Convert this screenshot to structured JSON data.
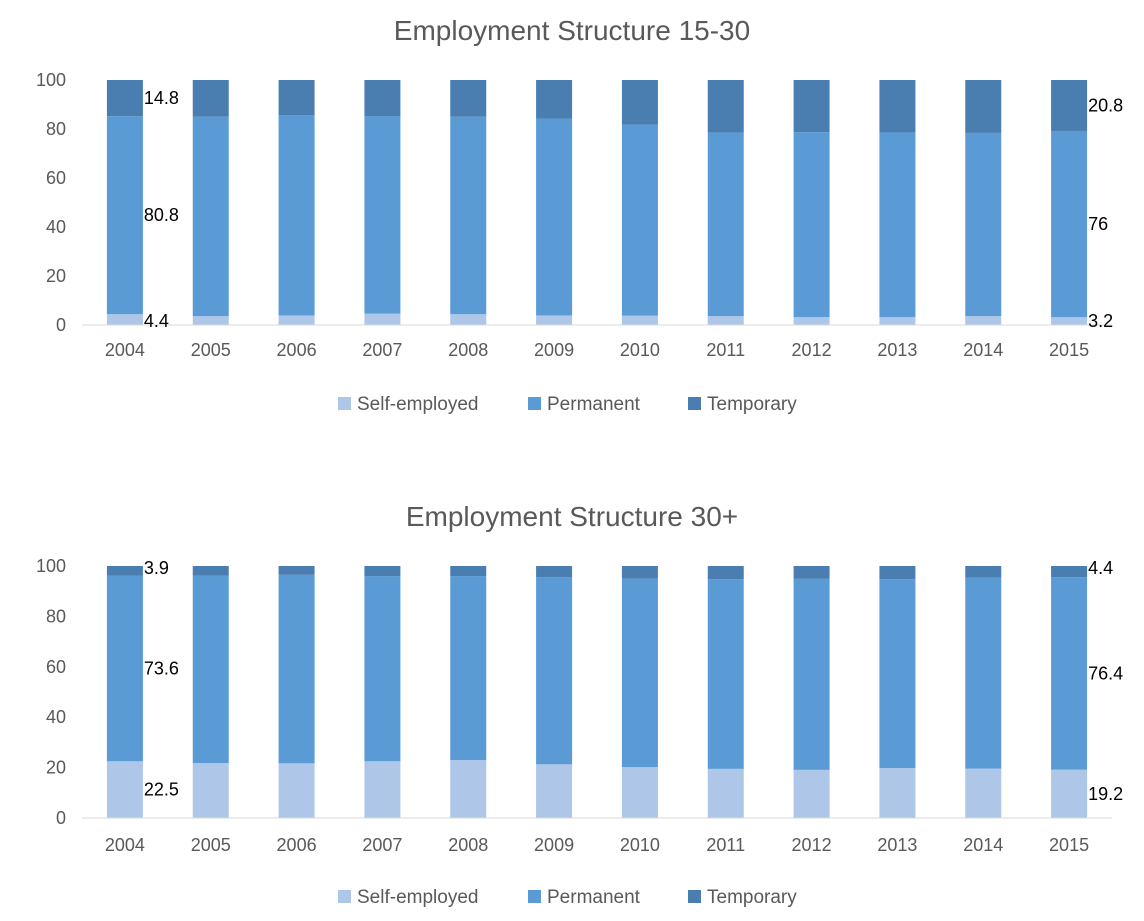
{
  "colors": {
    "self_employed": "#AEC6E8",
    "permanent": "#5B9BD5",
    "temporary": "#4A7EB0",
    "axis": "#D9D9D9",
    "text": "#595959"
  },
  "legend": [
    "Self-employed",
    "Permanent",
    "Temporary"
  ],
  "chart_data": [
    {
      "type": "bar",
      "stacked": true,
      "title": "Employment Structure 15-30",
      "categories": [
        "2004",
        "2005",
        "2006",
        "2007",
        "2008",
        "2009",
        "2010",
        "2011",
        "2012",
        "2013",
        "2014",
        "2015"
      ],
      "ylim": [
        0,
        100
      ],
      "yticks": [
        0,
        20,
        40,
        60,
        80,
        100
      ],
      "grid": false,
      "legend_position": "bottom",
      "series": [
        {
          "name": "Self-employed",
          "values": [
            4.4,
            3.6,
            3.9,
            4.6,
            4.4,
            3.9,
            3.8,
            3.6,
            3.2,
            3.2,
            3.6,
            3.2
          ]
        },
        {
          "name": "Permanent",
          "values": [
            80.8,
            81.4,
            81.8,
            80.7,
            80.6,
            80.4,
            78.0,
            75.0,
            75.5,
            75.4,
            74.8,
            76.0
          ]
        },
        {
          "name": "Temporary",
          "values": [
            14.8,
            15.0,
            14.3,
            14.7,
            15.0,
            15.7,
            18.2,
            21.4,
            21.3,
            21.4,
            21.6,
            20.8
          ]
        }
      ],
      "data_labels": [
        {
          "category": "2004",
          "series": "Self-employed",
          "text": "4.4"
        },
        {
          "category": "2004",
          "series": "Permanent",
          "text": "80.8"
        },
        {
          "category": "2004",
          "series": "Temporary",
          "text": "14.8"
        },
        {
          "category": "2015",
          "series": "Self-employed",
          "text": "3.2"
        },
        {
          "category": "2015",
          "series": "Permanent",
          "text": "76"
        },
        {
          "category": "2015",
          "series": "Temporary",
          "text": "20.8"
        }
      ]
    },
    {
      "type": "bar",
      "stacked": true,
      "title": "Employment Structure 30+",
      "categories": [
        "2004",
        "2005",
        "2006",
        "2007",
        "2008",
        "2009",
        "2010",
        "2011",
        "2012",
        "2013",
        "2014",
        "2015"
      ],
      "ylim": [
        0,
        100
      ],
      "yticks": [
        0,
        20,
        40,
        60,
        80,
        100
      ],
      "grid": false,
      "legend_position": "bottom",
      "series": [
        {
          "name": "Self-employed",
          "values": [
            22.5,
            21.8,
            21.7,
            22.5,
            23.0,
            21.3,
            20.2,
            19.5,
            19.1,
            19.8,
            19.6,
            19.2
          ]
        },
        {
          "name": "Permanent",
          "values": [
            73.6,
            74.4,
            74.8,
            73.5,
            73.0,
            74.2,
            74.8,
            75.3,
            75.8,
            75.0,
            75.8,
            76.4
          ]
        },
        {
          "name": "Temporary",
          "values": [
            3.9,
            3.8,
            3.5,
            4.0,
            4.0,
            4.5,
            5.0,
            5.2,
            5.1,
            5.2,
            4.6,
            4.4
          ]
        }
      ],
      "data_labels": [
        {
          "category": "2004",
          "series": "Self-employed",
          "text": "22.5"
        },
        {
          "category": "2004",
          "series": "Permanent",
          "text": "73.6"
        },
        {
          "category": "2004",
          "series": "Temporary",
          "text": "3.9"
        },
        {
          "category": "2015",
          "series": "Self-employed",
          "text": "19.2"
        },
        {
          "category": "2015",
          "series": "Permanent",
          "text": "76.4"
        },
        {
          "category": "2015",
          "series": "Temporary",
          "text": "4.4"
        }
      ]
    }
  ]
}
